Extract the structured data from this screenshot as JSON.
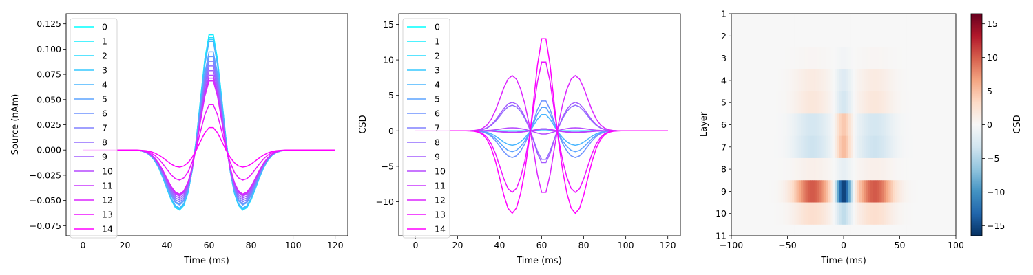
{
  "chart_data": [
    {
      "type": "line",
      "xlabel": "Time (ms)",
      "ylabel": "Source (nAm)",
      "xlim": [
        -8,
        126
      ],
      "ylim": [
        -0.085,
        0.135
      ],
      "xticks": [
        "0",
        "20",
        "40",
        "60",
        "80",
        "100",
        "120"
      ],
      "yticks": [
        "−0.075",
        "−0.050",
        "−0.025",
        "0.000",
        "0.025",
        "0.050",
        "0.075",
        "0.100",
        "0.125"
      ],
      "ytick_values": [
        -0.075,
        -0.05,
        -0.025,
        0,
        0.025,
        0.05,
        0.075,
        0.1,
        0.125
      ],
      "legend": {
        "placement": "upper-left",
        "entries": [
          "0",
          "1",
          "2",
          "3",
          "4",
          "5",
          "6",
          "7",
          "8",
          "9",
          "10",
          "11",
          "12",
          "13",
          "14"
        ]
      },
      "colormap": {
        "start": "#00ffff",
        "end": "#ff00ff"
      },
      "series_shape": {
        "x_start": 0,
        "x_end": 120,
        "step": 2,
        "center": 61
      },
      "series_peak": [
        0.125,
        0.125,
        0.122,
        0.12,
        0.118,
        0.107,
        0.102,
        0.097,
        0.092,
        0.087,
        0.082,
        0.079,
        0.076,
        0.05,
        0.025
      ],
      "series_trough": [
        -0.06,
        -0.06,
        -0.06,
        -0.059,
        -0.058,
        -0.055,
        -0.054,
        -0.052,
        -0.05,
        -0.048,
        -0.046,
        -0.045,
        -0.044,
        -0.03,
        -0.017
      ]
    },
    {
      "type": "line",
      "xlabel": "Time (ms)",
      "ylabel": "CSD",
      "xlim": [
        -8,
        126
      ],
      "ylim": [
        -14.8,
        16.5
      ],
      "xticks": [
        "0",
        "20",
        "40",
        "60",
        "80",
        "100",
        "120"
      ],
      "yticks": [
        "−10",
        "−5",
        "0",
        "5",
        "10",
        "15"
      ],
      "ytick_values": [
        -10,
        -5,
        0,
        5,
        10,
        15
      ],
      "legend": {
        "placement": "upper-left",
        "entries": [
          "0",
          "1",
          "2",
          "3",
          "4",
          "5",
          "6",
          "7",
          "8",
          "9",
          "10",
          "11",
          "12",
          "13",
          "14"
        ]
      },
      "colormap": {
        "start": "#00ffff",
        "end": "#ff00ff"
      },
      "series_shape": {
        "x_start": 0,
        "x_end": 120,
        "step": 2,
        "center": 61
      },
      "series_amplitude": [
        0,
        0,
        0,
        0.3,
        2.5,
        3.6,
        4.6,
        0.2,
        -4.4,
        -4.9,
        -0.5,
        0.3,
        -9.5,
        10.6,
        14.2
      ]
    },
    {
      "type": "heatmap",
      "xlabel": "Time (ms)",
      "ylabel": "Layer",
      "xlim": [
        -100,
        100
      ],
      "ylim": [
        11,
        1
      ],
      "xticks": [
        "−100",
        "−50",
        "0",
        "50",
        "100"
      ],
      "xtick_values": [
        -100,
        -50,
        0,
        50,
        100
      ],
      "yticks": [
        "1",
        "2",
        "3",
        "4",
        "5",
        "6",
        "7",
        "8",
        "9",
        "10",
        "11"
      ],
      "ytick_values": [
        1,
        2,
        3,
        4,
        5,
        6,
        7,
        8,
        9,
        10,
        11
      ],
      "colormap": "RdBu_r",
      "colorbar": {
        "label": "CSD",
        "range": [
          -16.5,
          16.5
        ],
        "ticks": [
          "15",
          "10",
          "5",
          "0",
          "−5",
          "−10",
          "−15"
        ],
        "tick_values": [
          15,
          10,
          5,
          0,
          -5,
          -10,
          -15
        ]
      },
      "layer_amplitude": [
        0,
        0,
        -0.5,
        -2.3,
        -3.1,
        4.8,
        5.6,
        -1.5,
        -16.5,
        -4.5,
        0
      ],
      "time_profile": {
        "center_ms": 0,
        "center_width_ms": 7,
        "side_offset_ms": 28,
        "side_width_ms": 16
      }
    }
  ]
}
